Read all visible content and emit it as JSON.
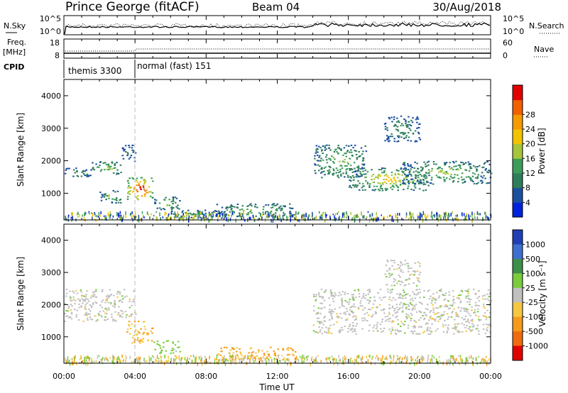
{
  "header": {
    "station": "Prince George (fitACF)",
    "beam": "Beam 04",
    "date": "30/Aug/2018"
  },
  "noise_panel": {
    "left_label": "N.Sky",
    "right_label": "N.Search",
    "left_ticks": [
      "10^5",
      "10^0"
    ],
    "right_ticks": [
      "10^5",
      "10^0"
    ]
  },
  "freq_panel": {
    "left_label_line1": "Freq.",
    "left_label_line2": "[MHz]",
    "right_label": "Nave",
    "left_ticks": [
      "18",
      "8"
    ],
    "right_ticks": [
      "60",
      "0"
    ]
  },
  "cpid_panel": {
    "label": "CPID",
    "modes": [
      {
        "text": "themis 3300",
        "start_hour": 0
      },
      {
        "text": "normal (fast) 151",
        "start_hour": 4
      }
    ]
  },
  "x_axis": {
    "label": "Time UT",
    "tick_labels": [
      "00:00",
      "04:00",
      "08:00",
      "12:00",
      "16:00",
      "20:00",
      "00:00"
    ],
    "range_hours": [
      0,
      24
    ]
  },
  "power_panel": {
    "ylabel": "Slant Range [km]",
    "y_ticks": [
      "1000",
      "2000",
      "3000",
      "4000"
    ],
    "colorbar_label": "Power [dB]",
    "colorbar_ticks": [
      "4",
      "8",
      "12",
      "16",
      "20",
      "24",
      "28"
    ],
    "colors": [
      "#0022dd",
      "#1b4fa0",
      "#2e7d5a",
      "#3c9d5a",
      "#a6c53a",
      "#f2c400",
      "#f59a00",
      "#f06000",
      "#e00000"
    ]
  },
  "velocity_panel": {
    "ylabel": "Slant Range [km]",
    "y_ticks": [
      "1000",
      "2000",
      "3000",
      "4000"
    ],
    "colorbar_label": "Velocity [m s⁻¹]",
    "colorbar_ticks": [
      "1000",
      "500",
      "100",
      "25",
      "-25",
      "-100",
      "-500",
      "-1000"
    ],
    "colors": [
      "#1f3fb5",
      "#3e6fd0",
      "#3e8f4a",
      "#7acc3a",
      "#c0c0c0",
      "#f5c842",
      "#f59a1a",
      "#f06a10",
      "#e00000"
    ]
  },
  "chart_data": {
    "type": "heatmap",
    "x_range_hours": [
      0,
      24
    ],
    "y_range_km": [
      180,
      4500
    ],
    "power_regions": [
      {
        "t0": 0.0,
        "t1": 1.5,
        "r0": 1500,
        "r1": 1800,
        "power_db": 8
      },
      {
        "t0": 1.5,
        "t1": 3.2,
        "r0": 1600,
        "r1": 2000,
        "power_db": 12
      },
      {
        "t0": 3.2,
        "t1": 4.0,
        "r0": 2000,
        "r1": 2500,
        "power_db": 6
      },
      {
        "t0": 2.0,
        "t1": 3.2,
        "r0": 700,
        "r1": 1100,
        "power_db": 12
      },
      {
        "t0": 3.5,
        "t1": 5.0,
        "r0": 800,
        "r1": 1500,
        "power_db": 26
      },
      {
        "t0": 5.0,
        "t1": 6.5,
        "r0": 500,
        "r1": 900,
        "power_db": 12
      },
      {
        "t0": 6.0,
        "t1": 9.0,
        "r0": 250,
        "r1": 500,
        "power_db": 8
      },
      {
        "t0": 8.5,
        "t1": 13.0,
        "r0": 300,
        "r1": 700,
        "power_db": 12
      },
      {
        "t0": 14.0,
        "t1": 17.0,
        "r0": 1500,
        "r1": 2500,
        "power_db": 12
      },
      {
        "t0": 16.0,
        "t1": 20.5,
        "r0": 1100,
        "r1": 1800,
        "power_db": 16
      },
      {
        "t0": 19.0,
        "t1": 24.0,
        "r0": 1300,
        "r1": 2000,
        "power_db": 12
      },
      {
        "t0": 18.0,
        "t1": 20.0,
        "r0": 2600,
        "r1": 3400,
        "power_db": 8
      }
    ],
    "velocity_regions": [
      {
        "t0": 0.0,
        "t1": 4.0,
        "r0": 1500,
        "r1": 2500,
        "velocity": 0
      },
      {
        "t0": 3.5,
        "t1": 5.0,
        "r0": 800,
        "r1": 1500,
        "velocity": -100
      },
      {
        "t0": 5.0,
        "t1": 6.5,
        "r0": 500,
        "r1": 900,
        "velocity": 50
      },
      {
        "t0": 8.5,
        "t1": 13.0,
        "r0": 300,
        "r1": 700,
        "velocity": -100
      },
      {
        "t0": 14.0,
        "t1": 24.0,
        "r0": 1100,
        "r1": 2500,
        "velocity": 0
      },
      {
        "t0": 18.0,
        "t1": 20.0,
        "r0": 2600,
        "r1": 3400,
        "velocity": 0
      }
    ]
  }
}
